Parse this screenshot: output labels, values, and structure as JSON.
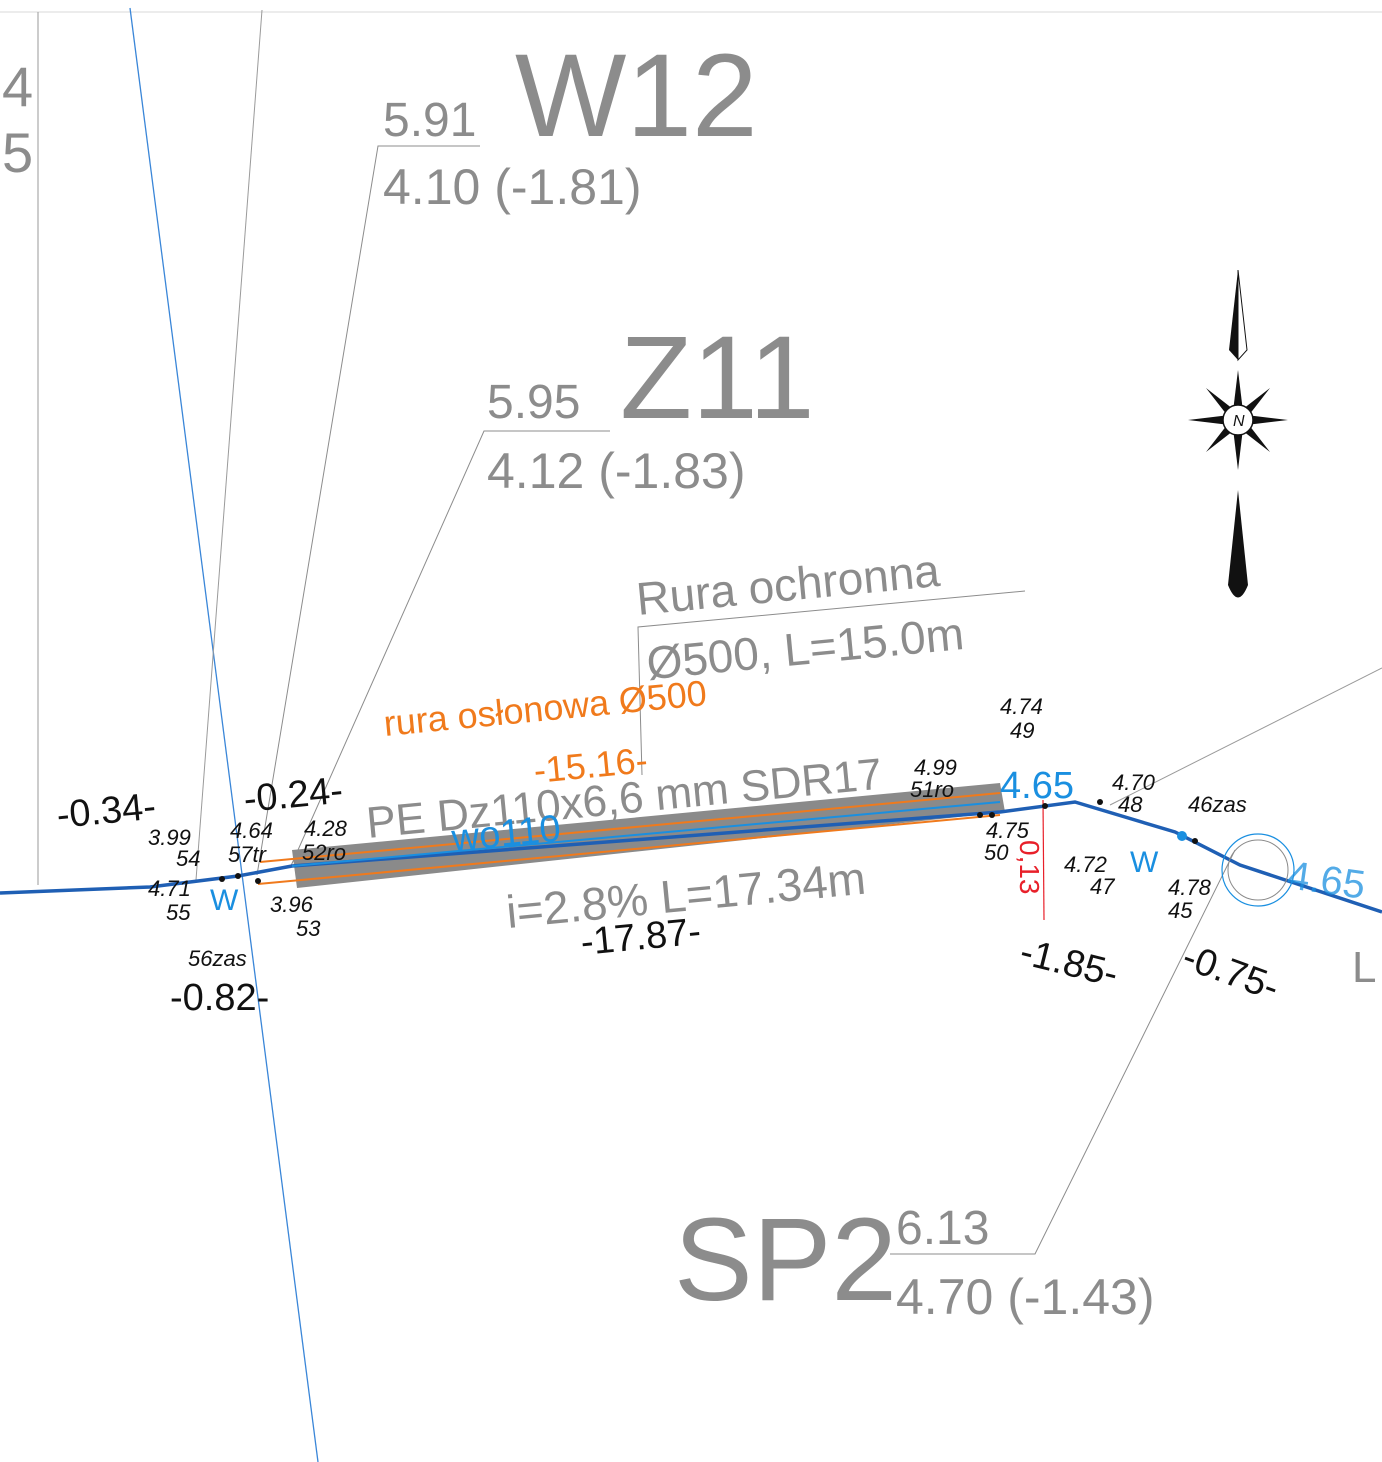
{
  "edge_labels": {
    "top": "4",
    "bottom": "5"
  },
  "nodes": {
    "W12": {
      "name": "W12",
      "top": "5.91",
      "bottom": "4.10 (-1.81)"
    },
    "Z11": {
      "name": "Z11",
      "top": "5.95",
      "bottom": "4.12 (-1.83)"
    },
    "SP2": {
      "name": "SP2",
      "top": "6.13",
      "bottom": "4.70 (-1.43)"
    }
  },
  "sleeve": {
    "line1": "Rura ochronna",
    "line2": "Ø500, L=15.0m"
  },
  "casing_label": "rura osłonowa Ø500",
  "pipe": {
    "spec": "PE Dz110x6,6 mm SDR17",
    "slope": "i=2.8% L=17.34m",
    "code": "wo110"
  },
  "depths": {
    "d1": "-0.34-",
    "d2": "-0.24-",
    "d3": "-15.16-",
    "d4": "-17.87-",
    "d5": "-0.82-",
    "d6": "-1.85-",
    "d7": "-0.75-"
  },
  "points": {
    "p54": {
      "h": "3.99",
      "n": "54"
    },
    "p57": {
      "h": "4.64",
      "n": "57tr"
    },
    "p52": {
      "h": "4.28",
      "n": "52ro"
    },
    "p55": {
      "h": "4.71",
      "n": "55"
    },
    "p53": {
      "h": "3.96",
      "n": "53"
    },
    "p56": {
      "n": "56zas"
    },
    "p51": {
      "h": "4.99",
      "n": "51ro"
    },
    "p49": {
      "h": "4.74",
      "n": "49"
    },
    "p50": {
      "h": "4.75",
      "n": "50"
    },
    "p48": {
      "h": "4.70",
      "n": "48"
    },
    "p46": {
      "n": "46zas"
    },
    "p47": {
      "h": "4.72",
      "n": "47"
    },
    "p45": {
      "h": "4.78",
      "n": "45"
    }
  },
  "blue_labels": {
    "w_left": "W",
    "w_right": "W",
    "elev1": "4.65",
    "elev2": "4.65"
  },
  "red_label": "0,13",
  "cut_label": "L",
  "compass_letter": "N",
  "colors": {
    "water": "#1a8fe0",
    "main": "#1f5fb4",
    "casing": "#f07a1c",
    "sleeve": "#8c8c8c",
    "red": "#e8202a"
  }
}
